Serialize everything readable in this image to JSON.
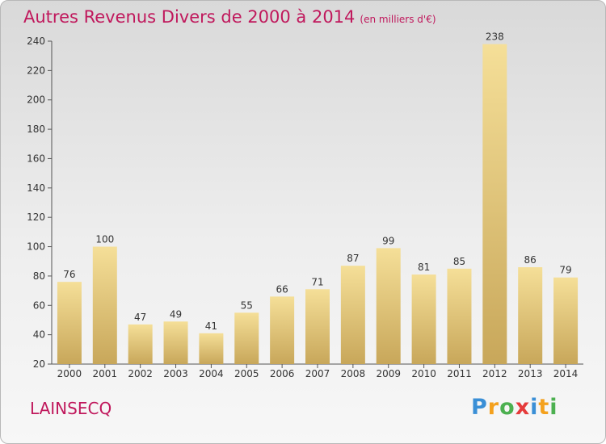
{
  "title": "Autres Revenus Divers de 2000 à 2014",
  "subtitle": "(en milliers d'€)",
  "commune": "LAINSECQ",
  "logo": {
    "letters": [
      "P",
      "r",
      "o",
      "x",
      "i",
      "t",
      "i"
    ],
    "colors": [
      "#3a8fd6",
      "#f4a11d",
      "#4cb050",
      "#e53b3b",
      "#3a8fd6",
      "#f4a11d",
      "#4cb050"
    ]
  },
  "colors": {
    "title": "#c0185c",
    "bar_top": "#f5df98",
    "bar_bottom": "#c8a75a"
  },
  "chart_data": {
    "type": "bar",
    "categories": [
      "2000",
      "2001",
      "2002",
      "2003",
      "2004",
      "2005",
      "2006",
      "2007",
      "2008",
      "2009",
      "2010",
      "2011",
      "2012",
      "2013",
      "2014"
    ],
    "values": [
      76,
      100,
      47,
      49,
      41,
      55,
      66,
      71,
      87,
      99,
      81,
      85,
      238,
      86,
      79
    ],
    "ylim": [
      20,
      240
    ],
    "yticks": [
      20,
      40,
      60,
      80,
      100,
      120,
      140,
      160,
      180,
      200,
      220,
      240
    ],
    "grid": false
  }
}
